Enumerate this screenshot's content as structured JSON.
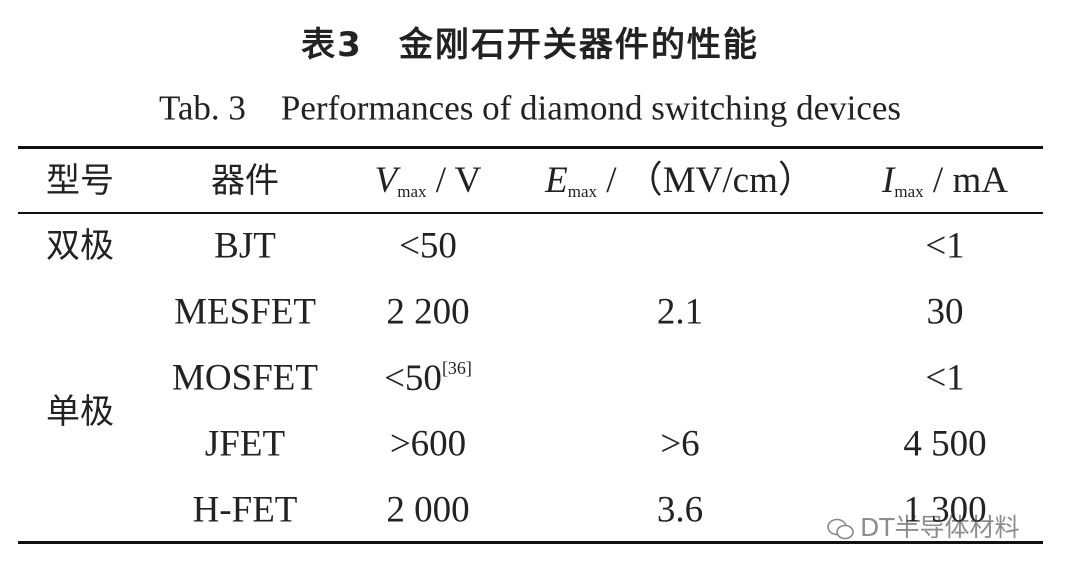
{
  "header": {
    "title": "表3　金刚石开关器件的性能",
    "subtitle": "Tab. 3　Performances of diamond switching devices"
  },
  "table": {
    "columns": [
      {
        "label": "型号"
      },
      {
        "label": "器件"
      },
      {
        "symbol": "V",
        "subscript": "max",
        "unit": " / V"
      },
      {
        "symbol": "E",
        "subscript": "max",
        "unit": " / （MV/cm）"
      },
      {
        "symbol": "I",
        "subscript": "max",
        "unit": " / mA"
      }
    ],
    "groups": [
      {
        "type": "双极",
        "rows": [
          {
            "device": "BJT",
            "v_max": "<50",
            "i_max": "<1"
          }
        ]
      },
      {
        "type": "单极",
        "rows": [
          {
            "device": "MESFET",
            "v_max": "2 200",
            "e_max": "2.1",
            "i_max": "30"
          },
          {
            "device": "MOSFET",
            "v_max": "<50",
            "v_max_ref": "[36]",
            "i_max": "<1"
          },
          {
            "device": "JFET",
            "v_max": ">600",
            "e_max": ">6",
            "i_max": "4 500"
          },
          {
            "device": "H-FET",
            "v_max": "2 000",
            "e_max": "3.6",
            "i_max": "1 300"
          }
        ]
      }
    ]
  },
  "watermark": "DT半导体材料"
}
